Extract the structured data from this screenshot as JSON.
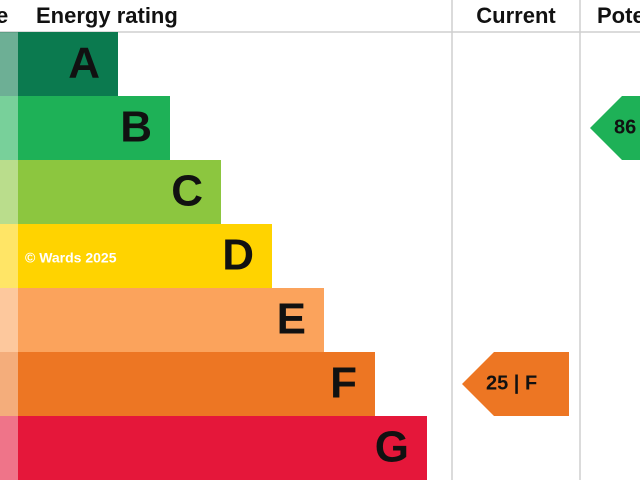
{
  "header": {
    "score": "e",
    "rating": "Energy rating",
    "current": "Current",
    "potential": "Pote"
  },
  "bands": [
    {
      "letter": "A",
      "color": "#0b7a4f"
    },
    {
      "letter": "B",
      "color": "#1eb157"
    },
    {
      "letter": "C",
      "color": "#8cc63f"
    },
    {
      "letter": "D",
      "color": "#ffd300"
    },
    {
      "letter": "E",
      "color": "#fba35c"
    },
    {
      "letter": "F",
      "color": "#ed7623"
    },
    {
      "letter": "G",
      "color": "#e5173a"
    }
  ],
  "watermark": "© Wards 2025",
  "current": {
    "label": "25 | F",
    "band": "F"
  },
  "potential": {
    "label": "86",
    "band": "B"
  }
}
